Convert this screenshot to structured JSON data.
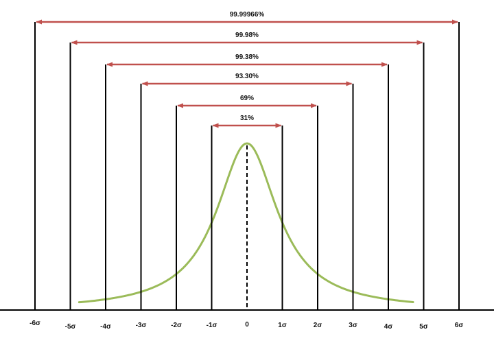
{
  "chart_data": {
    "type": "diagram",
    "curve": "bell-shaped distribution",
    "center_line": "dashed",
    "ticks": [
      {
        "value": -6,
        "label": "-6σ"
      },
      {
        "value": -5,
        "label": "-5σ"
      },
      {
        "value": -4,
        "label": "-4σ"
      },
      {
        "value": -3,
        "label": "-3σ"
      },
      {
        "value": -2,
        "label": "-2σ"
      },
      {
        "value": -1,
        "label": "-1σ"
      },
      {
        "value": 0,
        "label": "0"
      },
      {
        "value": 1,
        "label": "1σ"
      },
      {
        "value": 2,
        "label": "2σ"
      },
      {
        "value": 3,
        "label": "3σ"
      },
      {
        "value": 4,
        "label": "4σ"
      },
      {
        "value": 5,
        "label": "5σ"
      },
      {
        "value": 6,
        "label": "6σ"
      }
    ],
    "spans": [
      {
        "sigma": 1,
        "label": "31%"
      },
      {
        "sigma": 2,
        "label": "69%"
      },
      {
        "sigma": 3,
        "label": "93.30%"
      },
      {
        "sigma": 4,
        "label": "99.38%"
      },
      {
        "sigma": 5,
        "label": "99.98%"
      },
      {
        "sigma": 6,
        "label": "99.99966%"
      }
    ],
    "colors": {
      "curve": "#9bbb59",
      "arrows": "#c0504d",
      "lines": "#000000",
      "text": "#111111"
    }
  }
}
